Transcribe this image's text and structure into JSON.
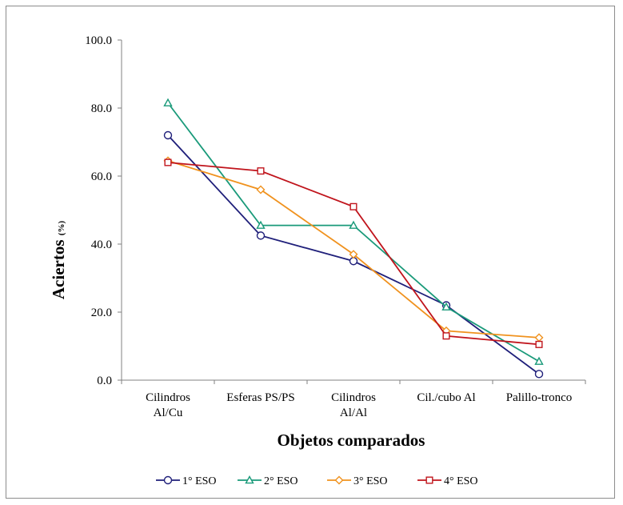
{
  "chart_data": {
    "type": "line",
    "categories": [
      [
        "Cilindros",
        "Al/Cu"
      ],
      [
        "Esferas PS/PS"
      ],
      [
        "Cilindros",
        "Al/Al"
      ],
      [
        "Cil./cubo Al"
      ],
      [
        "Palillo-tronco"
      ]
    ],
    "ylabel": "Aciertos",
    "ylabel_unit": "(%)",
    "xlabel": "Objetos comparados",
    "ylim": [
      0,
      100
    ],
    "yticks": [
      "0.0",
      "20.0",
      "40.0",
      "60.0",
      "80.0",
      "100.0"
    ],
    "grid": false,
    "legend_position": "bottom",
    "series": [
      {
        "name": "1° ESO",
        "color": "#1f1f7a",
        "marker": "circle",
        "values": [
          72.0,
          42.5,
          35.0,
          22.0,
          1.8
        ]
      },
      {
        "name": "2° ESO",
        "color": "#1a9a7a",
        "marker": "triangle",
        "values": [
          81.5,
          45.5,
          45.5,
          21.5,
          5.5
        ]
      },
      {
        "name": "3° ESO",
        "color": "#f0921e",
        "marker": "diamond",
        "values": [
          64.5,
          56.0,
          37.0,
          14.5,
          12.5
        ]
      },
      {
        "name": "4° ESO",
        "color": "#c0141c",
        "marker": "square",
        "values": [
          64.0,
          61.5,
          51.0,
          13.0,
          10.5
        ]
      }
    ]
  }
}
